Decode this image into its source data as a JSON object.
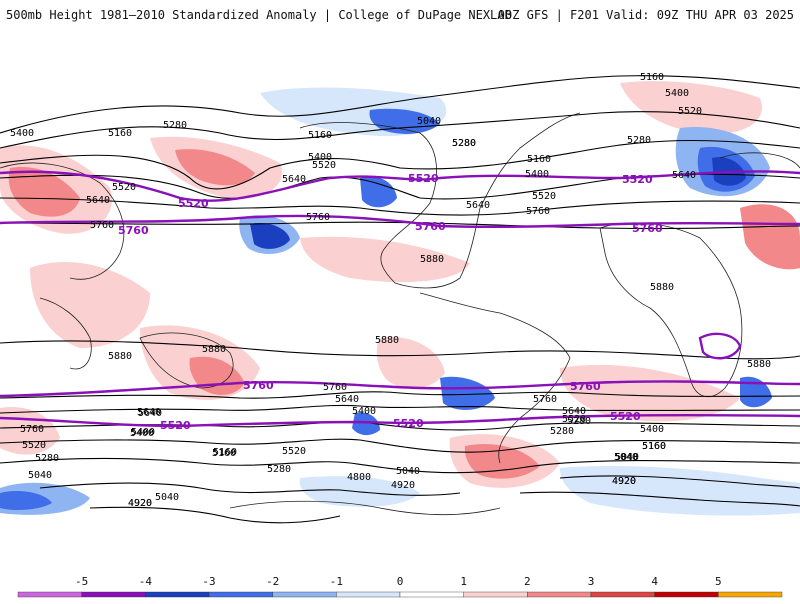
{
  "header": {
    "title": "500mb Height 1981–2010 Standardized Anomaly | College of DuPage NEXLAB",
    "run_info": "00Z GFS | F201 Valid: 09Z THU APR 03 2025"
  },
  "colors": {
    "key_contour": "#8a10b8",
    "contour": "#000000",
    "coast": "#222222"
  },
  "colorbar": {
    "labels": [
      "-5",
      "-4",
      "-3",
      "-2",
      "-1",
      "0",
      "1",
      "2",
      "3",
      "4",
      "5"
    ],
    "colors": [
      "#cc66e0",
      "#8a10b8",
      "#1a3fbf",
      "#3f6ee8",
      "#8fb4f2",
      "#d6e6fb",
      "#ffffff",
      "#fbd0d0",
      "#f2888a",
      "#e04545",
      "#c00000",
      "#f7a600"
    ]
  },
  "contour_labels": [
    {
      "text": "5160"
    },
    {
      "text": "5400"
    },
    {
      "text": "5520"
    },
    {
      "text": "5280"
    },
    {
      "text": "5040"
    },
    {
      "text": "5160"
    },
    {
      "text": "5280"
    },
    {
      "text": "5400"
    },
    {
      "text": "5520"
    },
    {
      "text": "5640"
    },
    {
      "text": "5760"
    },
    {
      "text": "5640"
    },
    {
      "text": "5400"
    },
    {
      "text": "5160"
    },
    {
      "text": "5280"
    },
    {
      "text": "5520"
    },
    {
      "text": "5640"
    },
    {
      "text": "5760"
    },
    {
      "text": "5880"
    },
    {
      "text": "5160"
    },
    {
      "text": "5400"
    },
    {
      "text": "5520"
    },
    {
      "text": "5280"
    },
    {
      "text": "5640"
    },
    {
      "text": "5760"
    },
    {
      "text": "5880"
    },
    {
      "text": "5880"
    },
    {
      "text": "5880"
    },
    {
      "text": "5880"
    },
    {
      "text": "5880"
    },
    {
      "text": "5760"
    },
    {
      "text": "5640"
    },
    {
      "text": "5400"
    },
    {
      "text": "5760"
    },
    {
      "text": "5640"
    },
    {
      "text": "5520"
    },
    {
      "text": "5400"
    },
    {
      "text": "5280"
    },
    {
      "text": "5160"
    },
    {
      "text": "5040"
    },
    {
      "text": "4800"
    },
    {
      "text": "4920"
    },
    {
      "text": "5040"
    },
    {
      "text": "4920"
    },
    {
      "text": "5760"
    },
    {
      "text": "5640"
    },
    {
      "text": "5400"
    },
    {
      "text": "5520"
    },
    {
      "text": "5280"
    },
    {
      "text": "5160"
    },
    {
      "text": "5040"
    },
    {
      "text": "4920"
    },
    {
      "text": "5640"
    },
    {
      "text": "5520"
    },
    {
      "text": "5400"
    },
    {
      "text": "5280"
    },
    {
      "text": "5160"
    },
    {
      "text": "5040"
    },
    {
      "text": "4920"
    },
    {
      "text": "5280"
    },
    {
      "text": "5160"
    },
    {
      "text": "5040"
    },
    {
      "text": "4920"
    }
  ],
  "key_labels": [
    {
      "text": "5520"
    },
    {
      "text": "5520"
    },
    {
      "text": "5520"
    },
    {
      "text": "5760"
    },
    {
      "text": "5760"
    },
    {
      "text": "5760"
    },
    {
      "text": "5760"
    },
    {
      "text": "5760"
    },
    {
      "text": "5520"
    },
    {
      "text": "5520"
    },
    {
      "text": "5520"
    }
  ]
}
